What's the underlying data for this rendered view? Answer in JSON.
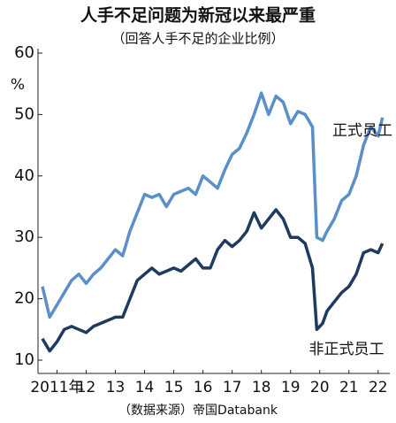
{
  "chart_data": {
    "type": "line",
    "title": "人手不足问题为新冠以来最严重",
    "subtitle": "（回答人手不足的企业比例）",
    "source": "（数据来源）帝国Databank",
    "ylabel": "%",
    "x": [
      2011.0,
      2011.25,
      2011.5,
      2011.75,
      2012.0,
      2012.25,
      2012.5,
      2012.75,
      2013.0,
      2013.25,
      2013.5,
      2013.75,
      2014.0,
      2014.25,
      2014.5,
      2014.75,
      2015.0,
      2015.25,
      2015.5,
      2015.75,
      2016.0,
      2016.25,
      2016.5,
      2016.75,
      2017.0,
      2017.25,
      2017.5,
      2017.75,
      2018.0,
      2018.25,
      2018.5,
      2018.75,
      2019.0,
      2019.25,
      2019.5,
      2019.75,
      2020.0,
      2020.25,
      2020.4,
      2020.6,
      2020.75,
      2021.0,
      2021.25,
      2021.5,
      2021.75,
      2022.0,
      2022.25,
      2022.5,
      2022.65
    ],
    "series": [
      {
        "name": "正式员工",
        "color": "#5b8fc9",
        "values": [
          22,
          17,
          19,
          21,
          23,
          24,
          22.5,
          24,
          25,
          26.5,
          28,
          27,
          31,
          34,
          37,
          36.5,
          37,
          35,
          37,
          37.5,
          38,
          37,
          40,
          39,
          38,
          41,
          43.5,
          44.5,
          47,
          50,
          53.5,
          50,
          53,
          52,
          48.5,
          50.5,
          50,
          48,
          30,
          29.5,
          31,
          33,
          36,
          37,
          40,
          45,
          48,
          46.5,
          49.5
        ]
      },
      {
        "name": "非正式员工",
        "color": "#1f3a5f",
        "values": [
          13.5,
          11.5,
          13,
          15,
          15.5,
          15,
          14.5,
          15.5,
          16,
          16.5,
          17,
          17,
          20,
          23,
          24,
          25,
          24,
          24.5,
          25,
          24.5,
          25.5,
          26.5,
          25,
          25,
          28,
          29.5,
          28.5,
          29.5,
          31,
          34,
          31.5,
          33,
          34.5,
          33,
          30,
          30,
          29,
          25,
          15,
          16,
          18,
          19.5,
          21,
          22,
          24,
          27.5,
          28,
          27.5,
          29
        ]
      }
    ],
    "xlim": [
      2010.85,
      2022.9
    ],
    "xticks": [
      {
        "value": 2011.5,
        "label": "2011年"
      },
      {
        "value": 2012.5,
        "label": "12"
      },
      {
        "value": 2013.5,
        "label": "13"
      },
      {
        "value": 2014.5,
        "label": "14"
      },
      {
        "value": 2015.5,
        "label": "15"
      },
      {
        "value": 2016.5,
        "label": "16"
      },
      {
        "value": 2017.5,
        "label": "17"
      },
      {
        "value": 2018.5,
        "label": "18"
      },
      {
        "value": 2019.5,
        "label": "19"
      },
      {
        "value": 2020.5,
        "label": "20"
      },
      {
        "value": 2021.5,
        "label": "21"
      },
      {
        "value": 2022.5,
        "label": "22"
      }
    ],
    "ylim": [
      10,
      60
    ],
    "yticks": [
      10,
      20,
      30,
      40,
      50,
      60
    ]
  }
}
